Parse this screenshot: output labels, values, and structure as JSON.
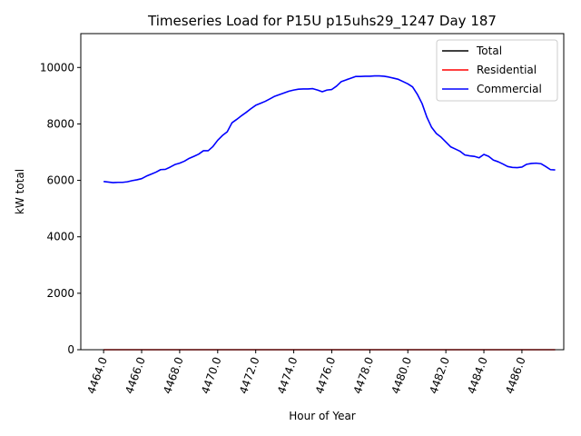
{
  "chart_data": {
    "type": "line",
    "title": "Timeseries Load for P15U p15uhs29_1247  Day 187",
    "xlabel": "Hour of Year",
    "ylabel": "kW total",
    "xlim": [
      4462.8,
      4488.2
    ],
    "ylim": [
      0,
      11200
    ],
    "x_ticks": [
      4464,
      4466,
      4468,
      4470,
      4472,
      4474,
      4476,
      4478,
      4480,
      4482,
      4484,
      4486
    ],
    "x_tick_labels": [
      "4464.0",
      "4466.0",
      "4468.0",
      "4470.0",
      "4472.0",
      "4474.0",
      "4476.0",
      "4478.0",
      "4480.0",
      "4482.0",
      "4484.0",
      "4486.0"
    ],
    "y_ticks": [
      0,
      2000,
      4000,
      6000,
      8000,
      10000
    ],
    "y_tick_labels": [
      "0",
      "2000",
      "4000",
      "6000",
      "8000",
      "10000"
    ],
    "legend_position": "top-right",
    "grid": false,
    "x": [
      4464.0,
      4464.25,
      4464.5,
      4464.75,
      4465.0,
      4465.25,
      4465.5,
      4465.75,
      4466.0,
      4466.25,
      4466.5,
      4466.75,
      4467.0,
      4467.25,
      4467.5,
      4467.75,
      4468.0,
      4468.25,
      4468.5,
      4468.75,
      4469.0,
      4469.25,
      4469.5,
      4469.75,
      4470.0,
      4470.25,
      4470.5,
      4470.75,
      4471.0,
      4471.25,
      4471.5,
      4471.75,
      4472.0,
      4472.25,
      4472.5,
      4472.75,
      4473.0,
      4473.25,
      4473.5,
      4473.75,
      4474.0,
      4474.25,
      4474.5,
      4474.75,
      4475.0,
      4475.25,
      4475.5,
      4475.75,
      4476.0,
      4476.25,
      4476.5,
      4476.75,
      4477.0,
      4477.25,
      4477.5,
      4477.75,
      4478.0,
      4478.25,
      4478.5,
      4478.75,
      4479.0,
      4479.25,
      4479.5,
      4479.75,
      4480.0,
      4480.25,
      4480.5,
      4480.75,
      4481.0,
      4481.25,
      4481.5,
      4481.75,
      4482.0,
      4482.25,
      4482.5,
      4482.75,
      4483.0,
      4483.25,
      4483.5,
      4483.75,
      4484.0,
      4484.25,
      4484.5,
      4484.75,
      4485.0,
      4485.25,
      4485.5,
      4485.75,
      4486.0,
      4486.25,
      4486.5,
      4486.75,
      4487.0,
      4487.25,
      4487.5,
      4487.75
    ],
    "series": [
      {
        "name": "Total",
        "color": "#000000",
        "values": [
          5960,
          5940,
          5920,
          5930,
          5930,
          5950,
          5990,
          6020,
          6060,
          6150,
          6220,
          6290,
          6380,
          6390,
          6470,
          6560,
          6610,
          6680,
          6780,
          6850,
          6930,
          7050,
          7050,
          7200,
          7420,
          7590,
          7720,
          8040,
          8160,
          8290,
          8410,
          8540,
          8660,
          8730,
          8800,
          8890,
          8980,
          9040,
          9100,
          9160,
          9200,
          9230,
          9240,
          9240,
          9250,
          9200,
          9140,
          9200,
          9220,
          9340,
          9500,
          9560,
          9620,
          9680,
          9680,
          9690,
          9690,
          9700,
          9700,
          9690,
          9660,
          9620,
          9580,
          9500,
          9420,
          9310,
          9050,
          8720,
          8240,
          7880,
          7660,
          7530,
          7360,
          7190,
          7110,
          7030,
          6900,
          6870,
          6850,
          6800,
          6920,
          6850,
          6720,
          6660,
          6580,
          6490,
          6460,
          6450,
          6470,
          6570,
          6600,
          6610,
          6590,
          6490,
          6380,
          6370
        ],
        "visible": false
      },
      {
        "name": "Residential",
        "color": "#ff0000",
        "values": [
          0,
          0,
          0,
          0,
          0,
          0,
          0,
          0,
          0,
          0,
          0,
          0,
          0,
          0,
          0,
          0,
          0,
          0,
          0,
          0,
          0,
          0,
          0,
          0,
          0,
          0,
          0,
          0,
          0,
          0,
          0,
          0,
          0,
          0,
          0,
          0,
          0,
          0,
          0,
          0,
          0,
          0,
          0,
          0,
          0,
          0,
          0,
          0,
          0,
          0,
          0,
          0,
          0,
          0,
          0,
          0,
          0,
          0,
          0,
          0,
          0,
          0,
          0,
          0,
          0,
          0,
          0,
          0,
          0,
          0,
          0,
          0,
          0,
          0,
          0,
          0,
          0,
          0,
          0,
          0,
          0,
          0,
          0,
          0,
          0,
          0,
          0,
          0,
          0,
          0,
          0,
          0,
          0,
          0,
          0,
          0
        ]
      },
      {
        "name": "Commercial",
        "color": "#0000ff",
        "values": [
          5960,
          5940,
          5920,
          5930,
          5930,
          5950,
          5990,
          6020,
          6060,
          6150,
          6220,
          6290,
          6380,
          6390,
          6470,
          6560,
          6610,
          6680,
          6780,
          6850,
          6930,
          7050,
          7050,
          7200,
          7420,
          7590,
          7720,
          8040,
          8160,
          8290,
          8410,
          8540,
          8660,
          8730,
          8800,
          8890,
          8980,
          9040,
          9100,
          9160,
          9200,
          9230,
          9240,
          9240,
          9250,
          9200,
          9140,
          9200,
          9220,
          9340,
          9500,
          9560,
          9620,
          9680,
          9680,
          9690,
          9690,
          9700,
          9700,
          9690,
          9660,
          9620,
          9580,
          9500,
          9420,
          9310,
          9050,
          8720,
          8240,
          7880,
          7660,
          7530,
          7360,
          7190,
          7110,
          7030,
          6900,
          6870,
          6850,
          6800,
          6920,
          6850,
          6720,
          6660,
          6580,
          6490,
          6460,
          6450,
          6470,
          6570,
          6600,
          6610,
          6590,
          6490,
          6380,
          6370
        ]
      }
    ]
  }
}
